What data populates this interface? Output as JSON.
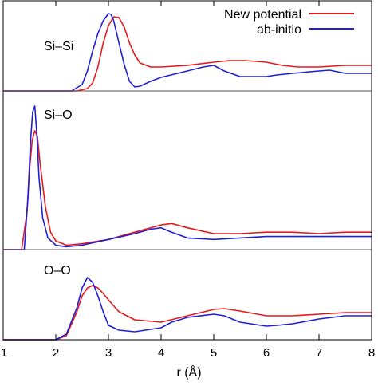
{
  "chart_data": {
    "type": "line",
    "xlabel": "r (Å)",
    "xlim": [
      1,
      8
    ],
    "xticks": [
      1,
      2,
      3,
      4,
      5,
      6,
      7,
      8
    ],
    "legend": {
      "placement": "top-right",
      "entries": [
        {
          "label": "New potential",
          "color": "#e41a1c"
        },
        {
          "label": "ab-initio",
          "color": "#1f1fd6"
        }
      ]
    },
    "panels": [
      {
        "label": "Si–Si",
        "ylim": [
          0,
          1.05
        ],
        "series": [
          {
            "name": "New potential",
            "color": "#e41a1c",
            "x": [
              1.0,
              2.4,
              2.6,
              2.7,
              2.8,
              2.9,
              3.0,
              3.1,
              3.2,
              3.3,
              3.4,
              3.5,
              3.6,
              3.8,
              4.0,
              4.5,
              5.0,
              5.3,
              5.6,
              6.0,
              6.3,
              6.6,
              7.0,
              7.5,
              8.0
            ],
            "y": [
              0,
              0,
              0.03,
              0.1,
              0.3,
              0.6,
              0.82,
              0.93,
              0.92,
              0.8,
              0.6,
              0.45,
              0.35,
              0.3,
              0.3,
              0.32,
              0.36,
              0.38,
              0.38,
              0.36,
              0.32,
              0.3,
              0.3,
              0.32,
              0.32
            ]
          },
          {
            "name": "ab-initio",
            "color": "#1f1fd6",
            "x": [
              1.0,
              2.3,
              2.5,
              2.6,
              2.7,
              2.8,
              2.9,
              3.0,
              3.05,
              3.1,
              3.2,
              3.3,
              3.4,
              3.5,
              3.6,
              3.8,
              4.0,
              4.5,
              4.8,
              5.0,
              5.2,
              5.5,
              6.0,
              6.2,
              6.5,
              7.0,
              7.2,
              7.5,
              8.0
            ],
            "y": [
              0,
              0,
              0.08,
              0.25,
              0.5,
              0.72,
              0.88,
              0.97,
              0.96,
              0.88,
              0.6,
              0.33,
              0.12,
              0.05,
              0.06,
              0.12,
              0.17,
              0.25,
              0.3,
              0.32,
              0.25,
              0.18,
              0.18,
              0.2,
              0.22,
              0.25,
              0.26,
              0.22,
              0.22
            ]
          }
        ]
      },
      {
        "label": "Si–O",
        "ylim": [
          0,
          1.05
        ],
        "series": [
          {
            "name": "New potential",
            "color": "#e41a1c",
            "x": [
              1.0,
              1.35,
              1.45,
              1.5,
              1.55,
              1.6,
              1.65,
              1.7,
              1.8,
              1.9,
              2.0,
              2.2,
              2.5,
              3.0,
              3.5,
              4.0,
              4.2,
              4.5,
              5.0,
              5.5,
              6.0,
              6.5,
              7.0,
              7.5,
              8.0
            ],
            "y": [
              0,
              0,
              0.25,
              0.55,
              0.75,
              0.82,
              0.78,
              0.6,
              0.3,
              0.12,
              0.06,
              0.03,
              0.04,
              0.07,
              0.12,
              0.17,
              0.18,
              0.15,
              0.11,
              0.11,
              0.12,
              0.12,
              0.11,
              0.12,
              0.12
            ]
          },
          {
            "name": "ab-initio",
            "color": "#1f1fd6",
            "x": [
              1.0,
              1.4,
              1.47,
              1.52,
              1.56,
              1.6,
              1.64,
              1.68,
              1.75,
              1.85,
              2.0,
              2.2,
              2.5,
              3.0,
              3.5,
              3.8,
              4.0,
              4.2,
              4.5,
              5.0,
              5.5,
              6.0,
              6.5,
              7.0,
              7.5,
              8.0
            ],
            "y": [
              0,
              0,
              0.35,
              0.75,
              0.95,
              0.99,
              0.8,
              0.5,
              0.22,
              0.08,
              0.03,
              0.02,
              0.03,
              0.07,
              0.11,
              0.14,
              0.15,
              0.12,
              0.08,
              0.07,
              0.08,
              0.09,
              0.09,
              0.09,
              0.09,
              0.09
            ]
          }
        ]
      },
      {
        "label": "O–O",
        "ylim": [
          0,
          1.05
        ],
        "series": [
          {
            "name": "New potential",
            "color": "#e41a1c",
            "x": [
              1.0,
              2.0,
              2.2,
              2.4,
              2.5,
              2.6,
              2.7,
              2.8,
              2.9,
              3.0,
              3.2,
              3.5,
              4.0,
              4.5,
              5.0,
              5.2,
              5.5,
              6.0,
              6.5,
              7.0,
              7.5,
              8.0
            ],
            "y": [
              0,
              0,
              0.05,
              0.35,
              0.55,
              0.65,
              0.68,
              0.65,
              0.58,
              0.5,
              0.35,
              0.25,
              0.22,
              0.3,
              0.38,
              0.39,
              0.36,
              0.3,
              0.3,
              0.32,
              0.34,
              0.34
            ]
          },
          {
            "name": "ab-initio",
            "color": "#1f1fd6",
            "x": [
              1.0,
              2.0,
              2.2,
              2.4,
              2.5,
              2.6,
              2.7,
              2.8,
              2.9,
              3.0,
              3.2,
              3.5,
              4.0,
              4.2,
              4.5,
              5.0,
              5.2,
              5.5,
              6.0,
              6.2,
              6.5,
              7.0,
              7.5,
              8.0
            ],
            "y": [
              0,
              0,
              0.07,
              0.4,
              0.65,
              0.78,
              0.72,
              0.55,
              0.35,
              0.18,
              0.12,
              0.1,
              0.15,
              0.22,
              0.28,
              0.32,
              0.3,
              0.22,
              0.17,
              0.18,
              0.2,
              0.26,
              0.3,
              0.3
            ]
          }
        ]
      }
    ]
  }
}
